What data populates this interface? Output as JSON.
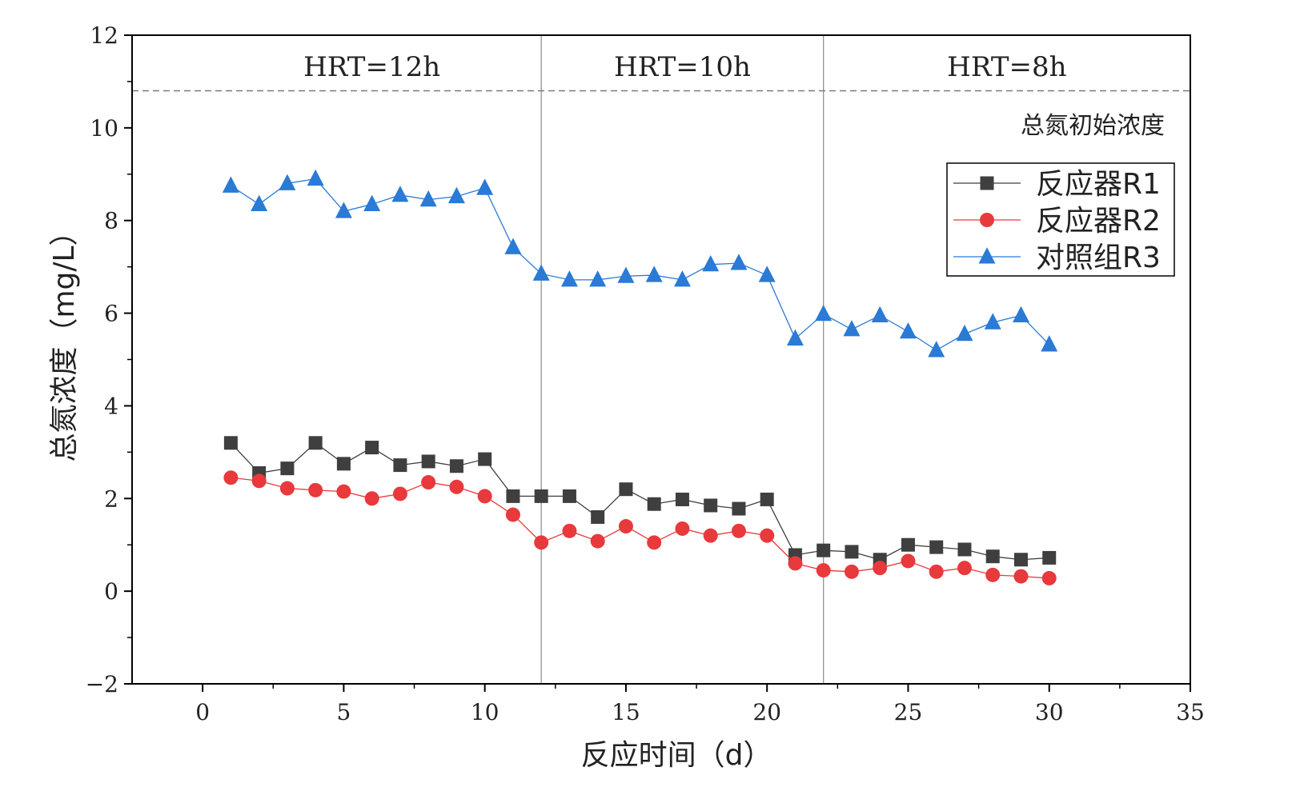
{
  "chart_data": {
    "type": "line",
    "title": "",
    "xlabel": "反应时间（d）",
    "ylabel": "总氮浓度（mg/L）",
    "xlim": [
      -2.5,
      35
    ],
    "ylim": [
      -2,
      12
    ],
    "x_ticks": [
      0,
      5,
      10,
      15,
      20,
      25,
      30,
      35
    ],
    "y_ticks": [
      -2,
      0,
      2,
      4,
      6,
      8,
      10,
      12
    ],
    "x_tick_labels": [
      "0",
      "5",
      "10",
      "15",
      "20",
      "25",
      "30",
      "35"
    ],
    "y_tick_labels": [
      "−2",
      "0",
      "2",
      "4",
      "6",
      "8",
      "10",
      "12"
    ],
    "legend_position": "upper-right",
    "x": [
      1,
      2,
      3,
      4,
      5,
      6,
      7,
      8,
      9,
      10,
      11,
      12,
      13,
      14,
      15,
      16,
      17,
      18,
      19,
      20,
      21,
      22,
      23,
      24,
      25,
      26,
      27,
      28,
      29,
      30
    ],
    "series": [
      {
        "name": "反应器R1",
        "color": "#3f3f3f",
        "marker": "square",
        "values": [
          3.2,
          2.55,
          2.65,
          3.2,
          2.75,
          3.1,
          2.72,
          2.8,
          2.7,
          2.85,
          2.05,
          2.05,
          2.05,
          1.6,
          2.2,
          1.88,
          1.98,
          1.85,
          1.78,
          1.98,
          0.78,
          0.88,
          0.85,
          0.68,
          1.0,
          0.95,
          0.9,
          0.75,
          0.68,
          0.72
        ]
      },
      {
        "name": "反应器R2",
        "color": "#e8393c",
        "marker": "circle",
        "values": [
          2.45,
          2.38,
          2.22,
          2.18,
          2.15,
          2.0,
          2.1,
          2.35,
          2.25,
          2.05,
          1.65,
          1.05,
          1.3,
          1.08,
          1.4,
          1.05,
          1.35,
          1.2,
          1.3,
          1.2,
          0.6,
          0.45,
          0.42,
          0.5,
          0.65,
          0.42,
          0.5,
          0.35,
          0.32,
          0.28
        ]
      },
      {
        "name": "对照组R3",
        "color": "#2a7ad6",
        "marker": "triangle",
        "values": [
          8.75,
          8.35,
          8.8,
          8.9,
          8.2,
          8.35,
          8.55,
          8.45,
          8.52,
          8.7,
          7.42,
          6.85,
          6.72,
          6.72,
          6.8,
          6.82,
          6.72,
          7.05,
          7.08,
          6.82,
          5.45,
          5.98,
          5.65,
          5.95,
          5.6,
          5.2,
          5.55,
          5.8,
          5.95,
          5.32
        ]
      }
    ],
    "reference_line": {
      "y": 10.8,
      "label": "总氮初始浓度",
      "style": "dashed"
    },
    "phase_dividers": [
      12,
      22
    ],
    "phases": [
      {
        "label": "HRT=12h",
        "x_center": 6
      },
      {
        "label": "HRT=10h",
        "x_center": 17
      },
      {
        "label": "HRT=8h",
        "x_center": 28.5
      }
    ]
  }
}
